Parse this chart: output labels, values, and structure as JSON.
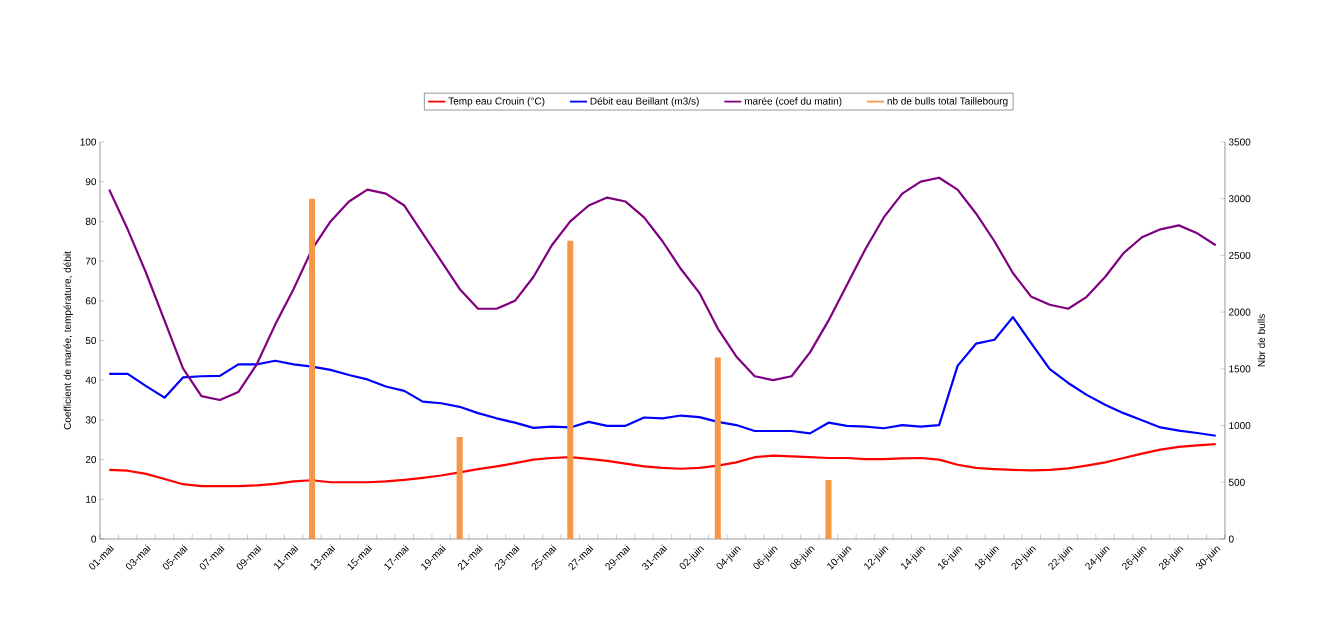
{
  "chart_data": {
    "type": "line",
    "ylabel": "Coefficient de marée, température, débit",
    "y2label": "Nbr de bulls",
    "legend": "top",
    "marker": "none",
    "categories": [
      "01-mai",
      null,
      "03-mai",
      null,
      "05-mai",
      null,
      "07-mai",
      null,
      "09-mai",
      null,
      "11-mai",
      null,
      "13-mai",
      null,
      "15-mai",
      null,
      "17-mai",
      null,
      "19-mai",
      null,
      "21-mai",
      null,
      "23-mai",
      null,
      "25-mai",
      null,
      "27-mai",
      null,
      "29-mai",
      null,
      "31-mai",
      null,
      "02-juin",
      null,
      "04-juin",
      null,
      "06-juin",
      null,
      "08-juin",
      null,
      "10-juin",
      null,
      "12-juin",
      null,
      "14-juin",
      null,
      "16-juin",
      null,
      "18-juin",
      null,
      "20-juin",
      null,
      "22-juin",
      null,
      "24-juin",
      null,
      "26-juin",
      null,
      "28-juin",
      null,
      "30-juin"
    ],
    "ylim": [
      0,
      100
    ],
    "yticks": [
      0,
      10,
      20,
      30,
      40,
      50,
      60,
      70,
      80,
      90,
      100
    ],
    "y2lim": [
      0,
      3500
    ],
    "y2ticks": [
      0,
      500,
      1000,
      1500,
      2000,
      2500,
      3000,
      3500
    ],
    "series": [
      {
        "name": "Temp eau Crouin (°C)",
        "color": "#ff0000",
        "values": [
          17.4,
          17.2,
          16.4,
          15.1,
          13.8,
          13.3,
          13.3,
          13.3,
          13.5,
          13.9,
          14.5,
          14.8,
          14.3,
          14.3,
          14.3,
          14.5,
          14.9,
          15.4,
          16,
          16.8,
          17.6,
          18.3,
          19.1,
          20,
          20.4,
          20.6,
          20.2,
          19.7,
          19,
          18.3,
          17.9,
          17.7,
          17.9,
          18.5,
          19.3,
          20.6,
          21,
          20.8,
          20.6,
          20.4,
          20.4,
          20.1,
          20.1,
          20.3,
          20.4,
          20,
          18.7,
          17.9,
          17.6,
          17.4,
          17.3,
          17.4,
          17.8,
          18.5,
          19.3,
          20.4,
          21.5,
          22.5,
          23.2,
          23.6,
          23.9
        ]
      },
      {
        "name": "Débit eau Beillant (m3/s)",
        "color": "#0000ff",
        "values": [
          41.6,
          41.6,
          38.5,
          35.6,
          40.7,
          41,
          41.1,
          44,
          44,
          44.9,
          44,
          43.4,
          42.6,
          41.3,
          40.2,
          38.4,
          37.3,
          34.6,
          34.2,
          33.3,
          31.7,
          30.4,
          29.3,
          28,
          28.3,
          28.1,
          29.5,
          28.5,
          28.5,
          30.6,
          30.4,
          31.1,
          30.7,
          29.5,
          28.7,
          27.2,
          27.2,
          27.2,
          26.6,
          29.3,
          28.5,
          28.3,
          27.9,
          28.7,
          28.3,
          28.7,
          43.6,
          49.2,
          50.2,
          55.9,
          49.3,
          42.8,
          39.3,
          36.3,
          33.8,
          31.7,
          29.9,
          28.1,
          27.3,
          26.7,
          26
        ]
      },
      {
        "name": "marée (coef du matin)",
        "color": "#800080",
        "values": [
          88,
          78,
          67,
          55,
          43,
          36,
          35,
          37,
          44,
          54,
          63,
          73,
          80,
          85,
          88,
          87,
          84,
          77,
          70,
          63,
          58,
          58,
          60,
          66,
          74,
          80,
          84,
          86,
          85,
          81,
          75,
          68,
          62,
          53,
          46,
          41,
          40,
          41,
          47,
          55,
          64,
          73,
          81,
          87,
          90,
          91,
          88,
          82,
          75,
          67,
          61,
          59,
          58,
          61,
          66,
          72,
          76,
          78,
          79,
          77,
          74
        ]
      },
      {
        "name": "nb de bulls total Taillebourg",
        "type": "bar",
        "axis": "y2",
        "color": "#f79646",
        "values": [
          null,
          null,
          null,
          null,
          null,
          null,
          null,
          null,
          null,
          null,
          null,
          3000,
          null,
          null,
          null,
          null,
          null,
          null,
          null,
          900,
          null,
          null,
          null,
          null,
          null,
          2630,
          null,
          null,
          null,
          null,
          null,
          null,
          null,
          1600,
          null,
          null,
          null,
          null,
          null,
          520,
          null,
          null,
          null,
          null,
          null,
          null,
          null,
          null,
          null,
          null,
          null,
          null,
          null,
          null,
          null,
          null,
          null,
          null,
          null,
          null,
          null
        ]
      }
    ]
  }
}
